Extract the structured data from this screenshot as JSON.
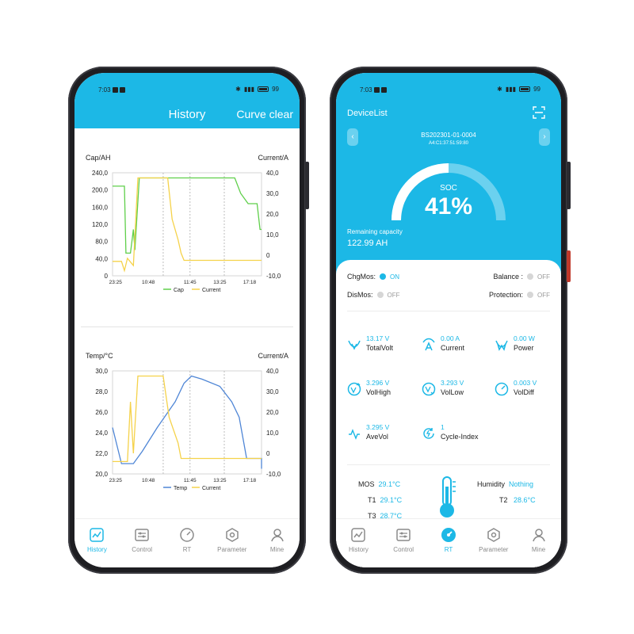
{
  "colors": {
    "accent": "#1cb8e6",
    "cap_series": "#5fcf4a",
    "current_series": "#f5d24a",
    "temp_series": "#4f86d6"
  },
  "status": {
    "time": "7:03",
    "battery": "99"
  },
  "left": {
    "header": {
      "title": "History",
      "clear_label": "Curve clear"
    },
    "chart1": {
      "ylabel_left": "Cap/AH",
      "ylabel_right": "Current/A",
      "left_ticks": [
        "240,0",
        "200,0",
        "160,0",
        "120,0",
        "80,0",
        "40,0",
        "0"
      ],
      "right_ticks": [
        "40,0",
        "30,0",
        "20,0",
        "10,0",
        "0",
        "-10,0"
      ],
      "x_ticks": [
        "23:25",
        "10:48",
        "11:45",
        "13:25",
        "17:18"
      ],
      "legend": [
        "Cap",
        "Current"
      ]
    },
    "chart2": {
      "ylabel_left": "Temp/°C",
      "ylabel_right": "Current/A",
      "left_ticks": [
        "30,0",
        "28,0",
        "26,0",
        "24,0",
        "22,0",
        "20,0"
      ],
      "right_ticks": [
        "40,0",
        "30,0",
        "20,0",
        "10,0",
        "0",
        "-10,0"
      ],
      "x_ticks": [
        "23:25",
        "10:48",
        "11:45",
        "13:25",
        "17:18"
      ],
      "legend": [
        "Temp",
        "Current"
      ]
    },
    "tabs": [
      {
        "label": "History",
        "icon": "history-icon"
      },
      {
        "label": "Control",
        "icon": "control-icon"
      },
      {
        "label": "RT",
        "icon": "rt-gauge-icon"
      },
      {
        "label": "Parameter",
        "icon": "parameter-icon"
      },
      {
        "label": "Mine",
        "icon": "mine-user-icon"
      }
    ]
  },
  "right": {
    "header": {
      "title": "DeviceList"
    },
    "device": {
      "name": "BS202301-01-0004",
      "mac": "A4:C1:37:51:59:80"
    },
    "soc": {
      "label": "SOC",
      "value": "41%",
      "fraction": 0.41
    },
    "remaining": {
      "label": "Remaining capacity",
      "value": "122.99 AH"
    },
    "toggles": {
      "chgmos": {
        "label": "ChgMos:",
        "state": "ON"
      },
      "dismos": {
        "label": "DisMos:",
        "state": "OFF"
      },
      "balance": {
        "label": "Balance :",
        "state": "OFF"
      },
      "protection": {
        "label": "Protection:",
        "state": "OFF"
      }
    },
    "metrics": [
      {
        "value": "13.17 V",
        "name": "TotalVolt",
        "icon": "total-volt-icon"
      },
      {
        "value": "0.00 A",
        "name": "Current",
        "icon": "current-icon"
      },
      {
        "value": "0.00 W",
        "name": "Power",
        "icon": "power-icon"
      },
      {
        "value": "3.296 V",
        "name": "VolHigh",
        "icon": "vol-high-icon"
      },
      {
        "value": "3.293 V",
        "name": "VolLow",
        "icon": "vol-low-icon"
      },
      {
        "value": "0.003 V",
        "name": "VolDiff",
        "icon": "vol-diff-icon"
      },
      {
        "value": "3.295 V",
        "name": "AveVol",
        "icon": "ave-vol-icon"
      },
      {
        "value": "1",
        "name": "Cycle-Index",
        "icon": "cycle-index-icon"
      }
    ],
    "temps": {
      "mos": {
        "label": "MOS",
        "value": "29.1°C"
      },
      "t1": {
        "label": "T1",
        "value": "29.1°C"
      },
      "t3": {
        "label": "T3",
        "value": "28.7°C"
      },
      "humidity": {
        "label": "Humidity",
        "value": "Nothing"
      },
      "t2": {
        "label": "T2",
        "value": "28.6°C"
      }
    },
    "tabs": [
      {
        "label": "History",
        "icon": "history-icon"
      },
      {
        "label": "Control",
        "icon": "control-icon"
      },
      {
        "label": "RT",
        "icon": "rt-gauge-icon"
      },
      {
        "label": "Parameter",
        "icon": "parameter-icon"
      },
      {
        "label": "Mine",
        "icon": "mine-user-icon"
      }
    ]
  }
}
